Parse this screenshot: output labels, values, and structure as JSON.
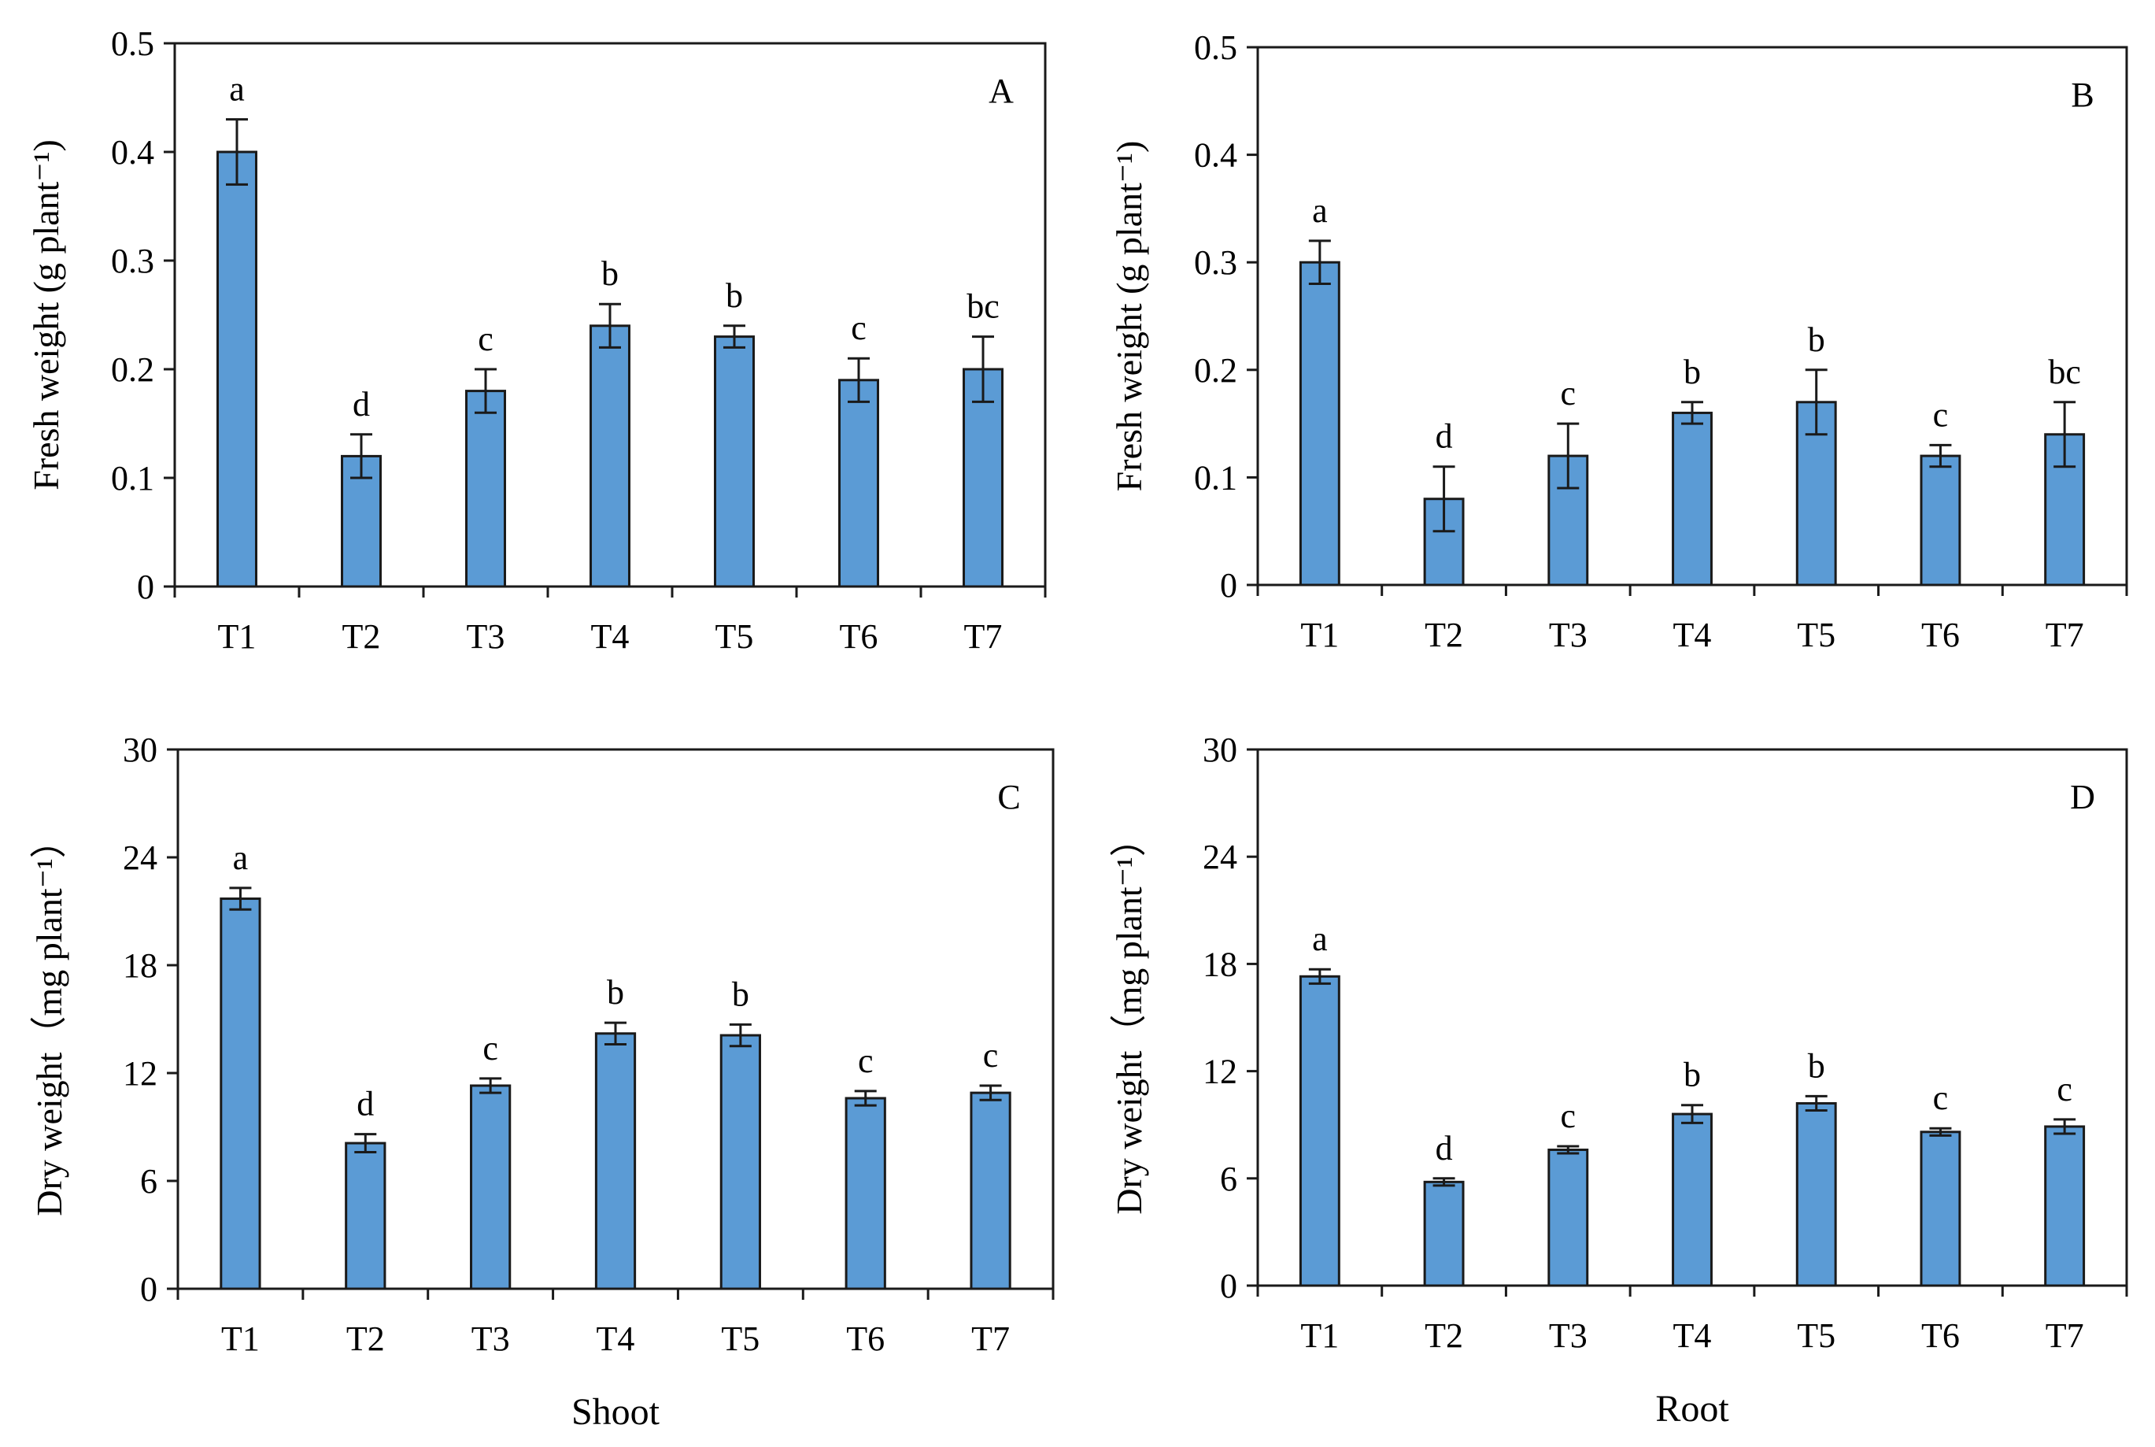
{
  "chart_data": [
    {
      "id": "A",
      "type": "bar",
      "panel_label": "A",
      "categories": [
        "T1",
        "T2",
        "T3",
        "T4",
        "T5",
        "T6",
        "T7"
      ],
      "values": [
        0.4,
        0.12,
        0.18,
        0.24,
        0.23,
        0.19,
        0.2
      ],
      "errors": [
        0.03,
        0.02,
        0.02,
        0.02,
        0.01,
        0.02,
        0.03
      ],
      "significance": [
        "a",
        "d",
        "c",
        "b",
        "b",
        "c",
        "bc"
      ],
      "ylabel": "Fresh weight (g plant⁻¹)",
      "ylim": [
        0,
        0.5
      ],
      "yticks": [
        "0",
        "0.1",
        "0.2",
        "0.3",
        "0.4",
        "0.5"
      ],
      "xlabel": ""
    },
    {
      "id": "B",
      "type": "bar",
      "panel_label": "B",
      "categories": [
        "T1",
        "T2",
        "T3",
        "T4",
        "T5",
        "T6",
        "T7"
      ],
      "values": [
        0.3,
        0.08,
        0.12,
        0.16,
        0.17,
        0.12,
        0.14
      ],
      "errors": [
        0.02,
        0.03,
        0.03,
        0.01,
        0.03,
        0.01,
        0.03
      ],
      "significance": [
        "a",
        "d",
        "c",
        "b",
        "b",
        "c",
        "bc"
      ],
      "ylabel": "Fresh weight (g plant⁻¹)",
      "ylim": [
        0,
        0.5
      ],
      "yticks": [
        "0",
        "0.1",
        "0.2",
        "0.3",
        "0.4",
        "0.5"
      ],
      "xlabel": ""
    },
    {
      "id": "C",
      "type": "bar",
      "panel_label": "C",
      "categories": [
        "T1",
        "T2",
        "T3",
        "T4",
        "T5",
        "T6",
        "T7"
      ],
      "values": [
        21.7,
        8.1,
        11.3,
        14.2,
        14.1,
        10.6,
        10.9
      ],
      "errors": [
        0.6,
        0.5,
        0.4,
        0.6,
        0.6,
        0.4,
        0.4
      ],
      "significance": [
        "a",
        "d",
        "c",
        "b",
        "b",
        "c",
        "c"
      ],
      "ylabel": "Dry weight（mg plant⁻¹）",
      "ylim": [
        0,
        30
      ],
      "yticks": [
        "0",
        "6",
        "12",
        "18",
        "24",
        "30"
      ],
      "xlabel": "Shoot"
    },
    {
      "id": "D",
      "type": "bar",
      "panel_label": "D",
      "categories": [
        "T1",
        "T2",
        "T3",
        "T4",
        "T5",
        "T6",
        "T7"
      ],
      "values": [
        17.3,
        5.8,
        7.6,
        9.6,
        10.2,
        8.6,
        8.9
      ],
      "errors": [
        0.4,
        0.2,
        0.2,
        0.5,
        0.4,
        0.2,
        0.4
      ],
      "significance": [
        "a",
        "d",
        "c",
        "b",
        "b",
        "c",
        "c"
      ],
      "ylabel": "Dry weight（mg plant⁻¹）",
      "ylim": [
        0,
        30
      ],
      "yticks": [
        "0",
        "6",
        "12",
        "18",
        "24",
        "30"
      ],
      "xlabel": "Root"
    }
  ]
}
